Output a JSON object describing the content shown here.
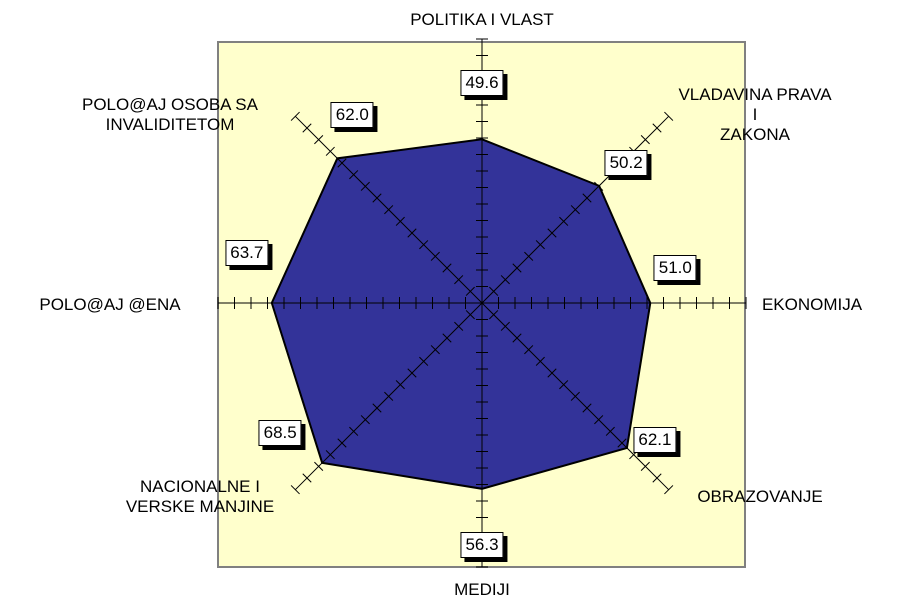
{
  "chart_data": {
    "type": "radar",
    "categories": [
      "POLITIKA I VLAST",
      "VLADAVINA PRAVA I\nZAKONA",
      "EKONOMIJA",
      "OBRAZOVANJE",
      "MEDIJI",
      "NACIONALNE I\nVERSKE MANJINE",
      "POLO@AJ @ENA",
      "POLO@AJ OSOBA SA\nINVALIDITETOM"
    ],
    "values": [
      49.6,
      50.2,
      51.0,
      62.1,
      56.3,
      68.5,
      63.7,
      62.0
    ],
    "value_labels": [
      "49.6",
      "50.2",
      "51.0",
      "62.1",
      "56.3",
      "68.5",
      "63.7",
      "62.0"
    ],
    "color": "#333399",
    "rlim": [
      0,
      80
    ],
    "rticks": [
      5,
      10,
      15,
      20,
      25,
      30,
      35,
      40,
      45,
      50,
      55,
      60,
      65,
      70,
      75,
      80
    ]
  }
}
